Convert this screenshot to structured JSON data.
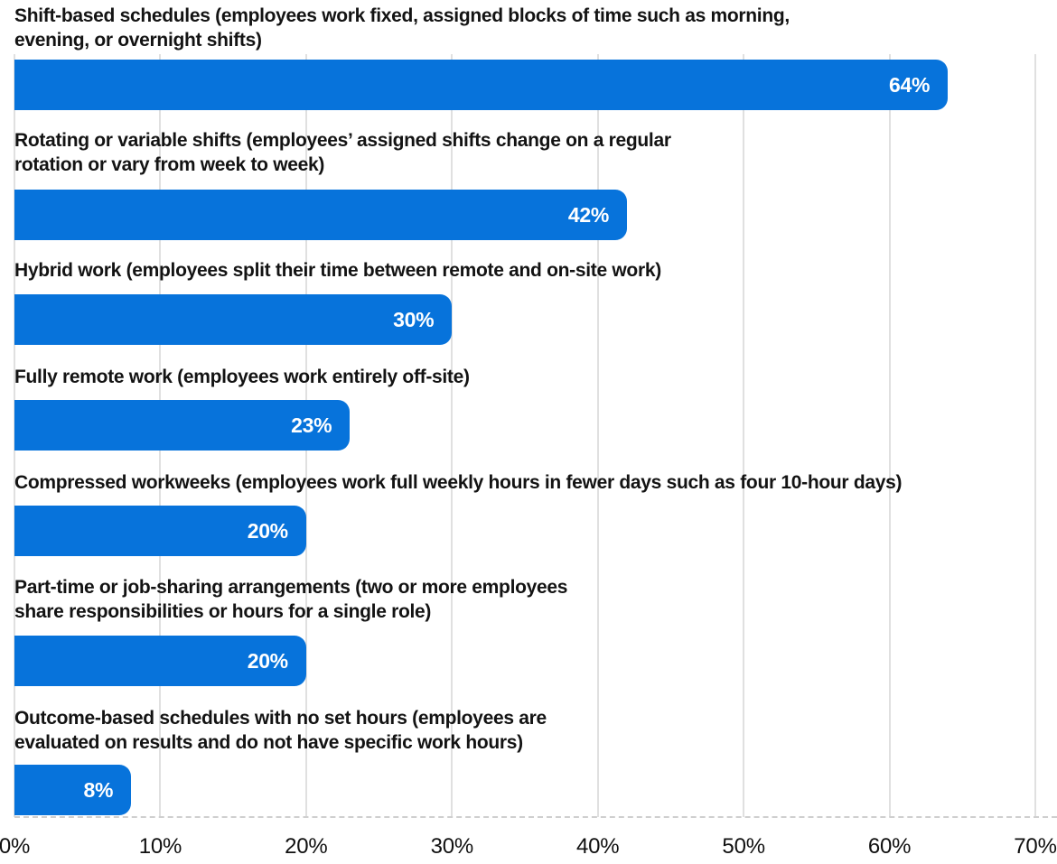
{
  "chart_data": {
    "type": "bar",
    "orientation": "horizontal",
    "title": "",
    "xlabel": "",
    "ylabel": "",
    "xlim": [
      0,
      70
    ],
    "grid": true,
    "legend": "none",
    "axis_line_style": "dashed",
    "x_tick_labels": [
      "0%",
      "10%",
      "20%",
      "30%",
      "40%",
      "50%",
      "60%",
      "70%"
    ],
    "categories": [
      "Shift-based schedules (employees work fixed, assigned blocks of time such as morning,\nevening, or overnight shifts)",
      "Rotating or variable shifts (employees’ assigned shifts change on a regular\nrotation or vary from week to week)",
      "Hybrid work (employees split their time between remote and on-site work)",
      "Fully remote work (employees work entirely off-site)",
      "Compressed workweeks (employees work full weekly hours in fewer days such as four 10-hour days)",
      "Part-time or job-sharing arrangements (two or more employees\nshare responsibilities or hours for a single role)",
      "Outcome-based schedules with no set hours (employees are\nevaluated on results and do not have specific work hours)"
    ],
    "values": [
      64,
      42,
      30,
      23,
      20,
      20,
      8
    ],
    "value_labels": [
      "64%",
      "42%",
      "30%",
      "23%",
      "20%",
      "20%",
      "8%"
    ],
    "colors": {
      "bar": "#0773DB",
      "value_text": "#FFFFFF",
      "label_text": "#131313",
      "axis_text": "#101010",
      "gridline": "#E0E0E0",
      "axis_line": "#CFCFCF",
      "background": "#FFFFFF"
    }
  }
}
